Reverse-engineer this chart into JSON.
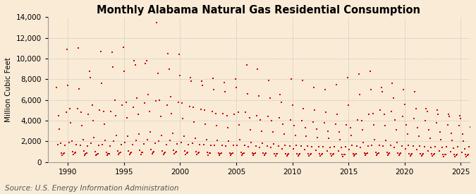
{
  "title": "Monthly Alabama Natural Gas Residential Consumption",
  "ylabel": "Million Cubic Feet",
  "source": "Source: U.S. Energy Information Administration",
  "background_color": "#faebd7",
  "plot_background_color": "#faebd7",
  "marker_color": "#cc0000",
  "grid_color": "#bbbbbb",
  "title_fontsize": 10.5,
  "ylabel_fontsize": 7.5,
  "source_fontsize": 7.5,
  "ylim": [
    0,
    14000
  ],
  "yticks": [
    0,
    2000,
    4000,
    6000,
    8000,
    10000,
    12000,
    14000
  ],
  "xlim_start": 1988.2,
  "xlim_end": 2025.8,
  "xticks": [
    1990,
    1995,
    2000,
    2005,
    2010,
    2015,
    2020,
    2025
  ],
  "values": [
    7200,
    1700,
    4500,
    3200,
    1800,
    900,
    700,
    800,
    900,
    1600,
    4800,
    10900,
    7400,
    1900,
    5200,
    3800,
    2000,
    1000,
    750,
    850,
    950,
    1700,
    5200,
    11000,
    7100,
    1600,
    4800,
    3500,
    2200,
    1100,
    650,
    800,
    850,
    1550,
    4600,
    8800,
    8200,
    1800,
    5500,
    4000,
    2400,
    1000,
    700,
    750,
    800,
    1600,
    5000,
    10700,
    7600,
    1700,
    4900,
    3700,
    2100,
    950,
    680,
    780,
    820,
    1580,
    4900,
    10600,
    9200,
    2000,
    6000,
    4500,
    2600,
    1100,
    750,
    900,
    950,
    1700,
    5500,
    11100,
    8800,
    1900,
    5800,
    4300,
    2500,
    1050,
    720,
    870,
    920,
    1680,
    5300,
    9800,
    9400,
    2100,
    6200,
    4600,
    2700,
    1150,
    760,
    920,
    970,
    1750,
    5700,
    9500,
    9800,
    2200,
    6500,
    4900,
    2900,
    1200,
    800,
    960,
    1000,
    1800,
    5900,
    13500,
    8600,
    2000,
    6000,
    4400,
    2600,
    1100,
    750,
    900,
    950,
    1700,
    5500,
    10500,
    9000,
    2100,
    6300,
    4700,
    2800,
    1150,
    770,
    930,
    980,
    1750,
    5800,
    10400,
    8400,
    1900,
    5700,
    4200,
    2500,
    1050,
    730,
    880,
    930,
    1700,
    5400,
    8200,
    7800,
    1800,
    5300,
    3900,
    2300,
    1000,
    710,
    860,
    910,
    1670,
    5100,
    7800,
    7400,
    1700,
    5000,
    3700,
    2200,
    950,
    690,
    840,
    890,
    1640,
    4900,
    8100,
    7000,
    1600,
    4700,
    3500,
    2100,
    900,
    670,
    820,
    870,
    1610,
    4700,
    7700,
    6800,
    1550,
    4500,
    3300,
    2000,
    880,
    660,
    810,
    860,
    1590,
    4600,
    8000,
    7200,
    1650,
    4800,
    3600,
    2200,
    920,
    680,
    830,
    880,
    1620,
    4800,
    9400,
    6600,
    1500,
    4300,
    3100,
    1900,
    860,
    650,
    800,
    850,
    1570,
    4500,
    9000,
    6400,
    1450,
    4100,
    3000,
    1800,
    840,
    640,
    790,
    840,
    1560,
    4400,
    7900,
    6200,
    1400,
    4000,
    2900,
    1750,
    830,
    630,
    780,
    830,
    1550,
    4300,
    6500,
    5800,
    1300,
    3700,
    2700,
    1650,
    810,
    610,
    760,
    810,
    1530,
    4100,
    8000,
    5500,
    1250,
    3500,
    2600,
    1600,
    800,
    600,
    750,
    800,
    1520,
    4000,
    7900,
    5200,
    1200,
    3300,
    2500,
    1550,
    790,
    590,
    740,
    790,
    1510,
    3900,
    7200,
    5000,
    1150,
    3200,
    2400,
    1500,
    780,
    580,
    730,
    780,
    1500,
    3800,
    7000,
    4800,
    1100,
    3000,
    2300,
    1450,
    770,
    570,
    720,
    770,
    1490,
    3700,
    7500,
    4600,
    1050,
    2900,
    2200,
    1400,
    760,
    560,
    710,
    760,
    1480,
    3600,
    8200,
    5500,
    1200,
    3300,
    2600,
    1600,
    800,
    600,
    750,
    800,
    1520,
    4100,
    8500,
    6500,
    1400,
    4000,
    3100,
    1900,
    860,
    650,
    800,
    850,
    1570,
    4600,
    8800,
    7000,
    1600,
    4700,
    3600,
    2200,
    920,
    680,
    830,
    880,
    1620,
    5000,
    7200,
    6800,
    1550,
    4600,
    3500,
    2100,
    910,
    670,
    820,
    870,
    1610,
    4900,
    7600,
    6200,
    1400,
    4100,
    3100,
    1900,
    870,
    640,
    790,
    840,
    1560,
    4400,
    7000,
    5600,
    1250,
    3600,
    2700,
    1650,
    820,
    610,
    760,
    810,
    1530,
    4200,
    6800,
    5200,
    1200,
    3300,
    2500,
    1550,
    800,
    590,
    740,
    790,
    1510,
    4000,
    5200,
    4900,
    1100,
    3100,
    2300,
    1450,
    780,
    570,
    720,
    770,
    1490,
    3800,
    5000,
    4600,
    1050,
    2900,
    2200,
    1400,
    760,
    560,
    710,
    760,
    1480,
    3600,
    4600,
    4400,
    1000,
    2800,
    2100,
    1350,
    750,
    550,
    700,
    750,
    1470,
    3500,
    4500,
    4200,
    950,
    2700,
    2000,
    1300,
    740,
    540,
    690,
    740,
    1460,
    3400,
    4400,
    4000,
    900,
    2600,
    1900,
    1250,
    730,
    530,
    680,
    730,
    1450,
    3300,
    4200
  ]
}
